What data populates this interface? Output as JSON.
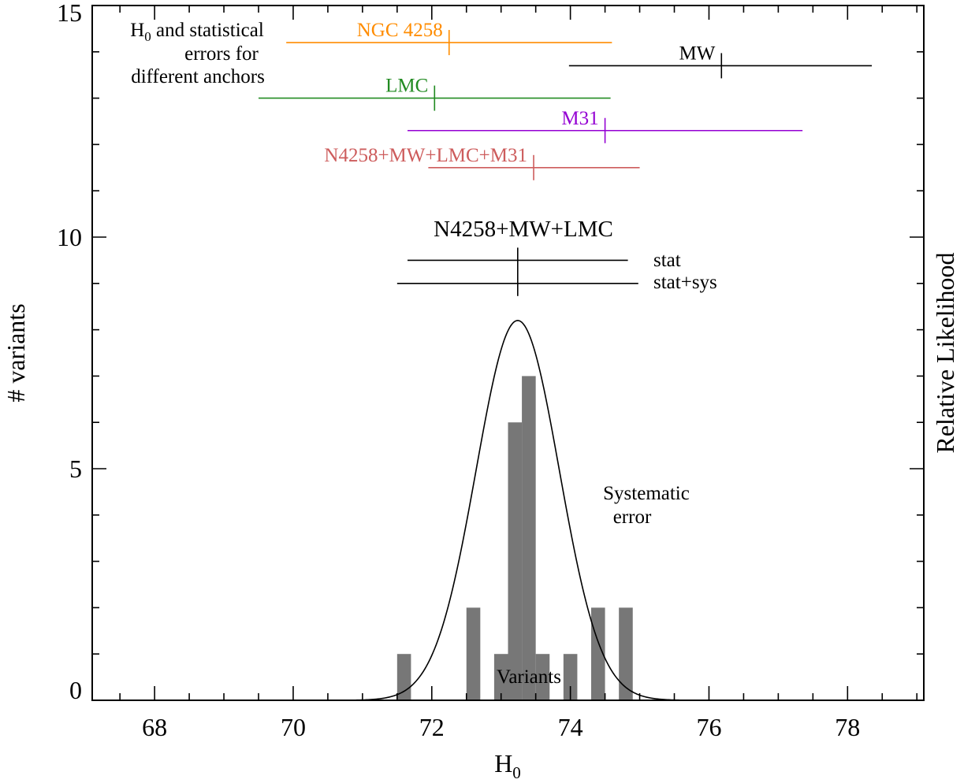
{
  "chart_data": {
    "type": "bar",
    "xlabel": "H",
    "xlabel_sub": "0",
    "ylabel": "# variants",
    "ylabel_right": "Relative Likelihood",
    "xlim": [
      67.1,
      79.1
    ],
    "ylim": [
      0,
      15
    ],
    "x_ticks": [
      68,
      70,
      72,
      74,
      76,
      78
    ],
    "y_ticks": [
      0,
      5,
      10,
      15
    ],
    "histogram": {
      "name": "Variants",
      "bin_width": 0.2,
      "color": "#777777",
      "bins": [
        {
          "center": 71.6,
          "count": 1
        },
        {
          "center": 72.6,
          "count": 2
        },
        {
          "center": 73.0,
          "count": 1
        },
        {
          "center": 73.2,
          "count": 6
        },
        {
          "center": 73.4,
          "count": 7
        },
        {
          "center": 73.6,
          "count": 1
        },
        {
          "center": 74.0,
          "count": 1
        },
        {
          "center": 74.4,
          "count": 2
        },
        {
          "center": 74.8,
          "count": 2
        }
      ]
    },
    "gaussian": {
      "mean": 73.24,
      "sigma": 0.6,
      "peak": 8.2,
      "label_line1": "Systematic",
      "label_line2": "error"
    },
    "anchors": {
      "title_line1_main": "H",
      "title_line1_sub": "0",
      "title_line1_rest": " and statistical",
      "title_line2": "errors for",
      "title_line3": "different anchors",
      "items": [
        {
          "label": "NGC 4258",
          "center": 72.25,
          "low": 69.9,
          "high": 74.6,
          "y": 14.2,
          "color": "#ff8c00"
        },
        {
          "label": "MW",
          "center": 76.18,
          "low": 73.98,
          "high": 78.35,
          "y": 13.7,
          "color": "#000000"
        },
        {
          "label": "LMC",
          "center": 72.04,
          "low": 69.5,
          "high": 74.58,
          "y": 13.0,
          "color": "#228b22"
        },
        {
          "label": "M31",
          "center": 74.5,
          "low": 71.65,
          "high": 77.35,
          "y": 12.3,
          "color": "#9400d3"
        },
        {
          "label": "N4258+MW+LMC+M31",
          "center": 73.47,
          "low": 71.95,
          "high": 75.0,
          "y": 11.5,
          "color": "#cd5c5c"
        }
      ]
    },
    "combined": {
      "title": "N4258+MW+LMC",
      "center": 73.24,
      "stat": {
        "label": "stat",
        "low": 71.65,
        "high": 74.83,
        "y": 9.5
      },
      "statsys": {
        "label": "stat+sys",
        "low": 71.5,
        "high": 74.98,
        "y": 9.0
      }
    }
  }
}
